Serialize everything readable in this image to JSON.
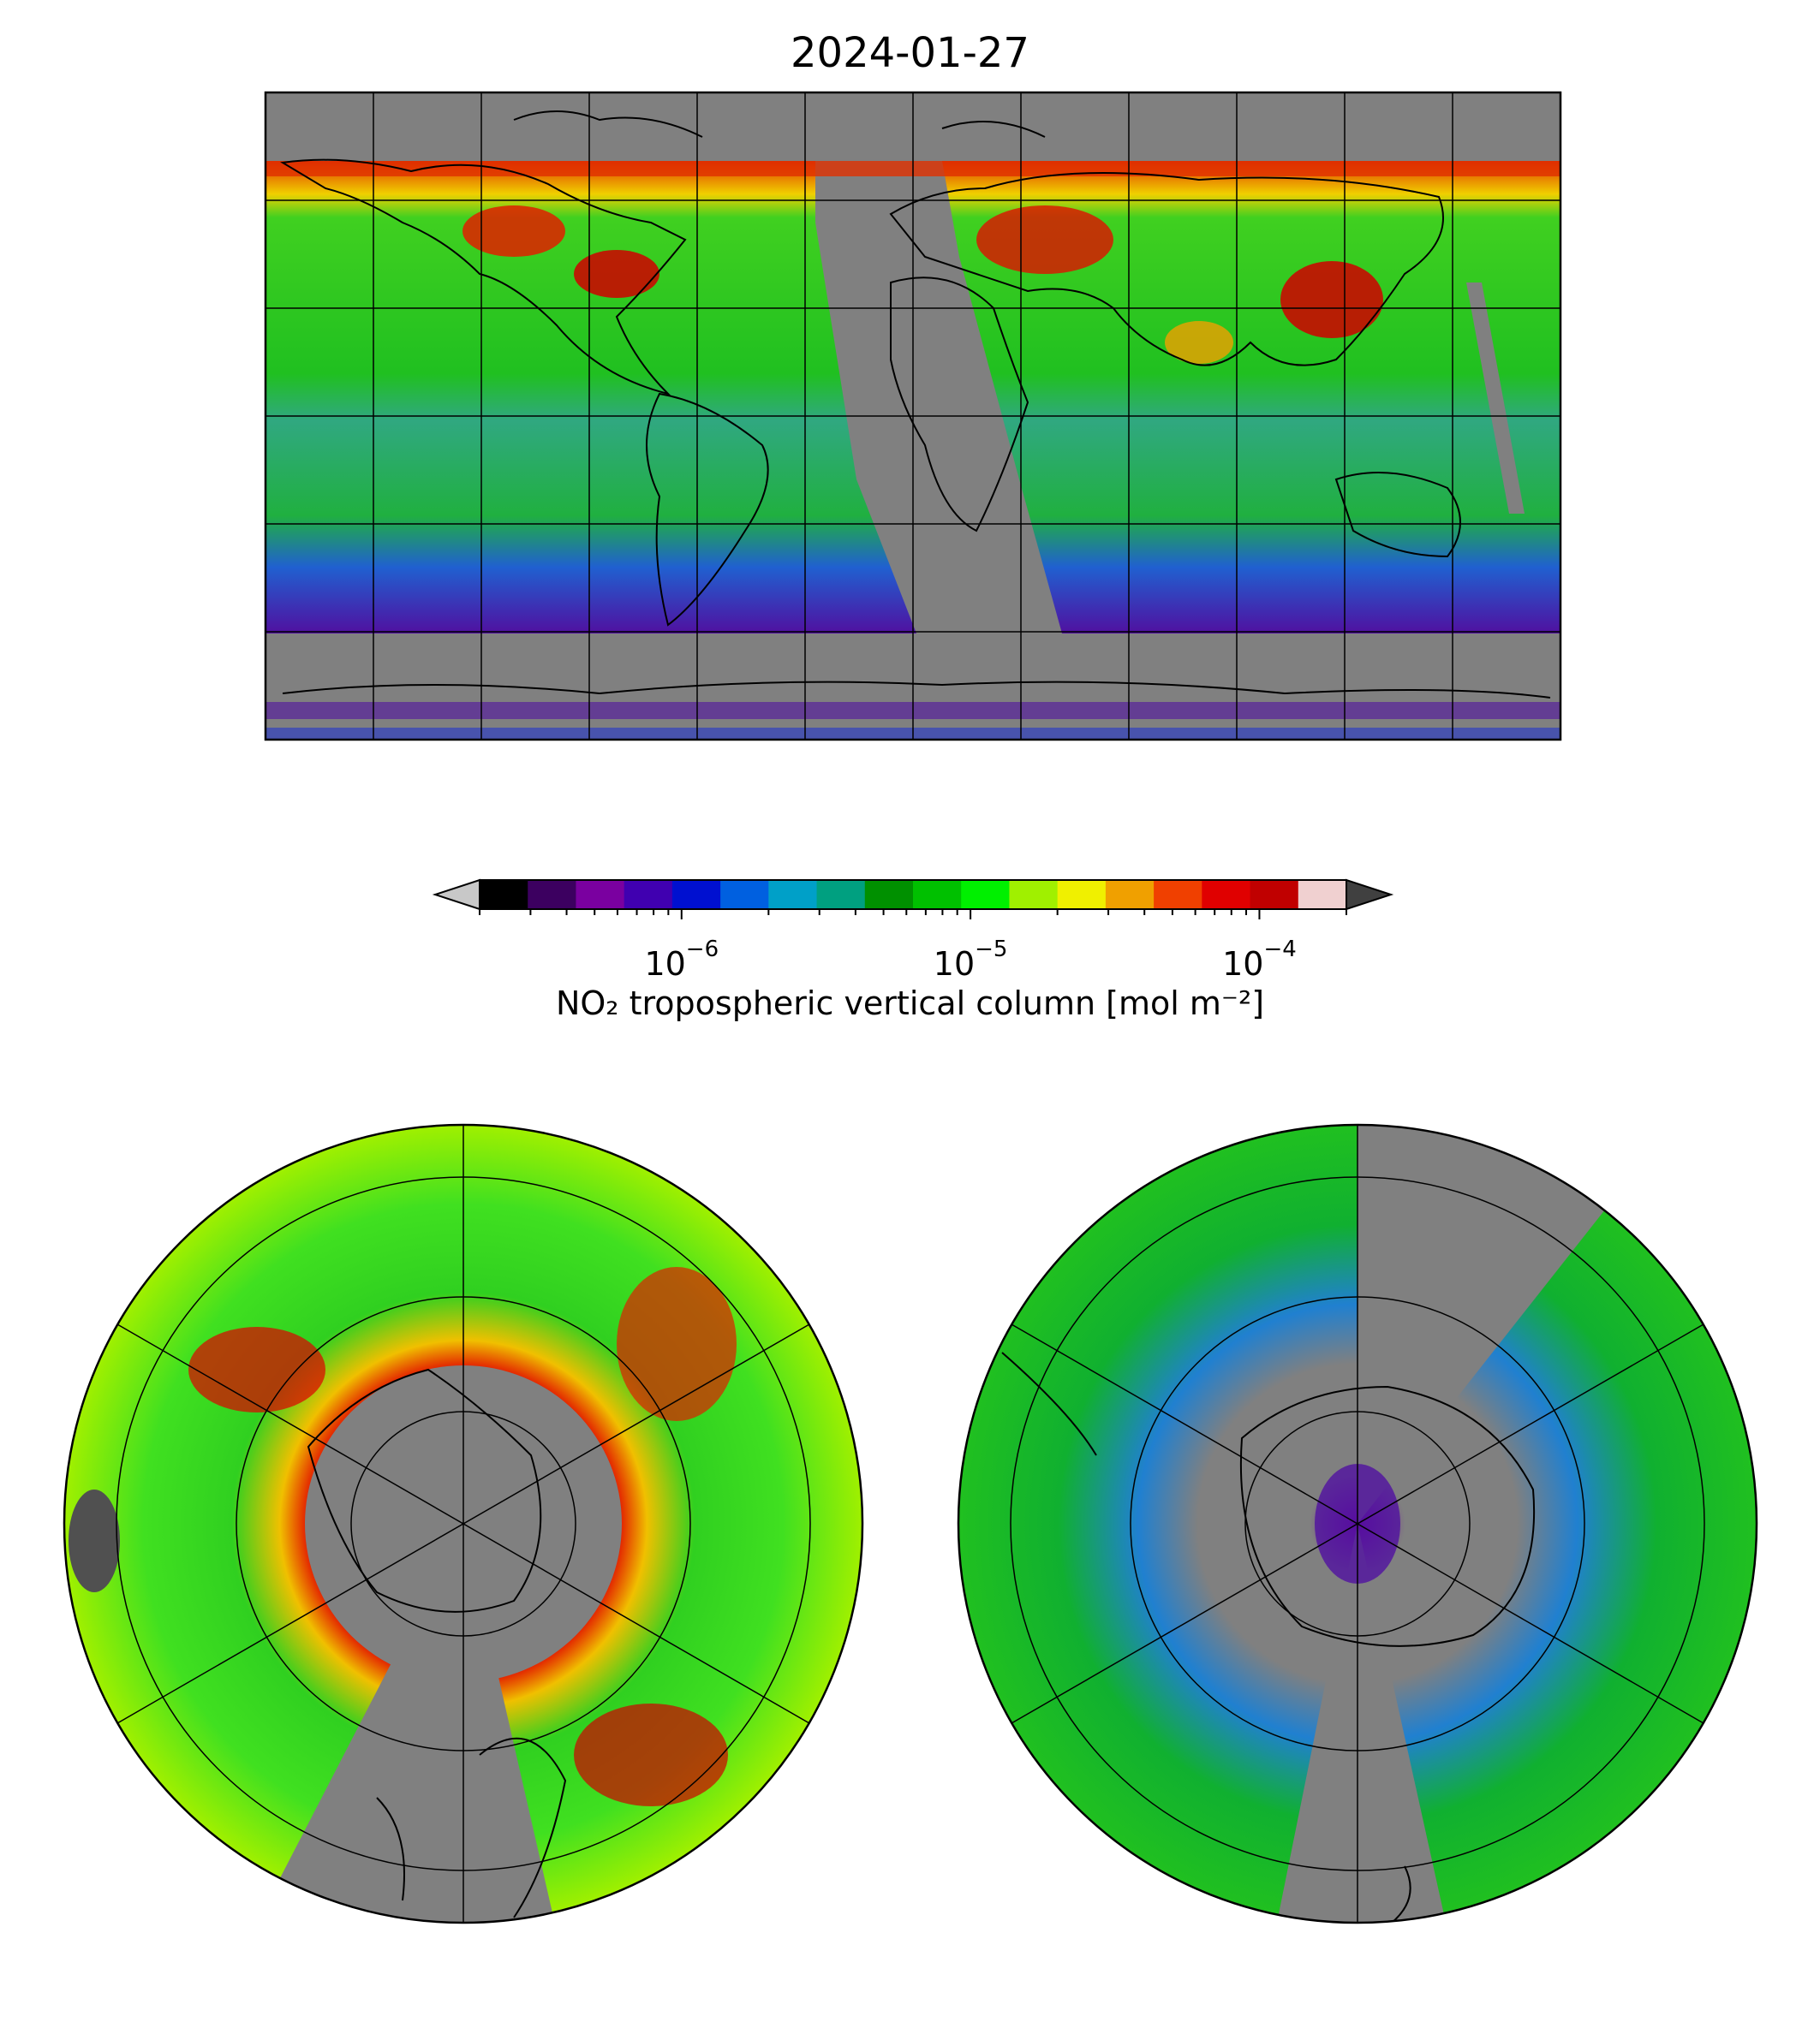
{
  "title": "2024-01-27",
  "colorbar": {
    "label": "NO₂ tropospheric vertical column [mol m⁻²]",
    "ticks": [
      {
        "base": "10",
        "exp": "−6",
        "value": 1e-06
      },
      {
        "base": "10",
        "exp": "−5",
        "value": 1e-05
      },
      {
        "base": "10",
        "exp": "−4",
        "value": 0.0001
      }
    ],
    "range": [
      2e-07,
      0.0002
    ],
    "scale": "log",
    "extend": "both",
    "under_color": "#c8c8c8",
    "over_color": "#404040",
    "colors": [
      "#000000",
      "#3c0060",
      "#7a00a0",
      "#4000b0",
      "#0010d0",
      "#0060e0",
      "#00a0c8",
      "#00a080",
      "#009000",
      "#00c000",
      "#00f000",
      "#a0f000",
      "#f0f000",
      "#f0a000",
      "#f04000",
      "#e00000",
      "#c00000",
      "#f0d0d0"
    ]
  },
  "colors": {
    "no_data": "#808080",
    "land_lines": "#000000"
  },
  "maps": [
    {
      "id": "global",
      "projection": "plate-carree"
    },
    {
      "id": "north-pole",
      "projection": "north-polar-stereographic"
    },
    {
      "id": "south-pole",
      "projection": "south-polar-stereographic"
    }
  ]
}
